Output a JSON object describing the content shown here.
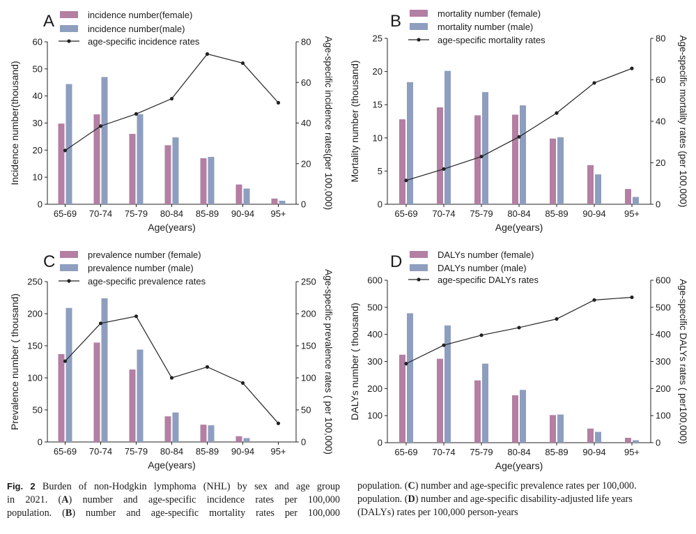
{
  "chart_data": [
    {
      "panel": "A",
      "type": "bar",
      "categories": [
        "65-69",
        "70-74",
        "75-79",
        "80-84",
        "85-89",
        "90-94",
        "95+"
      ],
      "series": [
        {
          "name": "incidence number(female)",
          "kind": "bar",
          "axis": "left",
          "color": "#b37fa2",
          "values": [
            29.8,
            33.2,
            26.0,
            21.8,
            17.0,
            7.3,
            2.1
          ]
        },
        {
          "name": "incidence number(male)",
          "kind": "bar",
          "axis": "left",
          "color": "#8e9ebf",
          "values": [
            44.4,
            47.0,
            33.3,
            24.7,
            17.5,
            5.8,
            1.3
          ]
        },
        {
          "name": "age-specific incidence rates",
          "kind": "line",
          "axis": "right",
          "color": "#222222",
          "values": [
            26.5,
            38.5,
            44.5,
            52,
            74,
            69.5,
            50
          ]
        }
      ],
      "xlabel": "Age(years)",
      "ylabel": "Incidence number(thousand)",
      "ylim": [
        0,
        60
      ],
      "yticks": [
        0,
        10,
        20,
        30,
        40,
        50,
        60
      ],
      "y2label": "Age-specific incidence rates(per 100,000)",
      "y2lim": [
        0,
        80
      ],
      "y2ticks": [
        0,
        20,
        40,
        60,
        80
      ]
    },
    {
      "panel": "B",
      "type": "bar",
      "categories": [
        "65-69",
        "70-74",
        "75-79",
        "80-84",
        "85-89",
        "90-94",
        "95+"
      ],
      "series": [
        {
          "name": "mortality number (female)",
          "kind": "bar",
          "axis": "left",
          "color": "#b37fa2",
          "values": [
            12.8,
            14.6,
            13.4,
            13.5,
            9.9,
            5.9,
            2.3
          ]
        },
        {
          "name": "mortality number (male)",
          "kind": "bar",
          "axis": "left",
          "color": "#8e9ebf",
          "values": [
            18.4,
            20.1,
            16.9,
            14.9,
            10.1,
            4.5,
            1.1
          ]
        },
        {
          "name": "age-specific mortality rates",
          "kind": "line",
          "axis": "right",
          "color": "#222222",
          "values": [
            11.5,
            17,
            23,
            32.5,
            44,
            58.5,
            65.5
          ]
        }
      ],
      "xlabel": "Age(years)",
      "ylabel": "Mortality number (thousand)",
      "ylim": [
        0,
        25
      ],
      "yticks": [
        0,
        5,
        10,
        15,
        20,
        25
      ],
      "y2label": "Age-specific mortality rates (per 100,000)",
      "y2lim": [
        0,
        80
      ],
      "y2ticks": [
        0,
        20,
        40,
        60,
        80
      ]
    },
    {
      "panel": "C",
      "type": "bar",
      "categories": [
        "65-69",
        "70-74",
        "75-79",
        "80-84",
        "85-89",
        "90-94",
        "95+"
      ],
      "series": [
        {
          "name": "prevalence number (female)",
          "kind": "bar",
          "axis": "left",
          "color": "#b37fa2",
          "values": [
            137,
            155,
            113,
            40,
            27,
            9,
            0
          ]
        },
        {
          "name": "prevalence number (male)",
          "kind": "bar",
          "axis": "left",
          "color": "#8e9ebf",
          "values": [
            209,
            224,
            144,
            46,
            26,
            6,
            0
          ]
        },
        {
          "name": "age-specific prevalence rates",
          "kind": "line",
          "axis": "right",
          "color": "#222222",
          "values": [
            126,
            185,
            196,
            100,
            117,
            92,
            29
          ]
        }
      ],
      "xlabel": "Age(years)",
      "ylabel": "Prevalence number ( thousand)",
      "ylim": [
        0,
        250
      ],
      "yticks": [
        0,
        50,
        100,
        150,
        200,
        250
      ],
      "y2label": "Age-specific prevalence rates ( per 100,000)",
      "y2lim": [
        0,
        250
      ],
      "y2ticks": [
        0,
        50,
        100,
        150,
        200,
        250
      ]
    },
    {
      "panel": "D",
      "type": "bar",
      "categories": [
        "65-69",
        "70-74",
        "75-79",
        "80-84",
        "85-89",
        "90-94",
        "95+"
      ],
      "series": [
        {
          "name": "DALYs number (female)",
          "kind": "bar",
          "axis": "left",
          "color": "#b37fa2",
          "values": [
            325,
            310,
            230,
            175,
            102,
            52,
            18
          ]
        },
        {
          "name": "DALYs number (male)",
          "kind": "bar",
          "axis": "left",
          "color": "#8e9ebf",
          "values": [
            478,
            433,
            292,
            195,
            104,
            40,
            9
          ]
        },
        {
          "name": "age-specific DALYs rates",
          "kind": "line",
          "axis": "right",
          "color": "#222222",
          "values": [
            292,
            360,
            397,
            425,
            457,
            527,
            537
          ]
        }
      ],
      "xlabel": "Age(years)",
      "ylabel": "DALYs number ( thousand)",
      "ylim": [
        0,
        600
      ],
      "yticks": [
        0,
        100,
        200,
        300,
        400,
        500,
        600
      ],
      "y2label": "Age-specific DALYs rates ( per100,000)",
      "y2lim": [
        0,
        600
      ],
      "y2ticks": [
        0,
        100,
        200,
        300,
        400,
        500,
        600
      ]
    }
  ],
  "caption": {
    "fig_label": "Fig. 2",
    "line1": "Burden of non-Hodgkin lymphoma (NHL) by sex and age group",
    "line2a": "in 2021. (",
    "letter_a": "A",
    "line2b": ") number and age-specific incidence rates per 100,000",
    "line3a": "population. (",
    "letter_b": "B",
    "line3b": ") number and age-specific mortality rates per 100,000",
    "line4a": "population. (",
    "letter_c": "C",
    "line4b": ") number and age-specific prevalence rates per 100,000.",
    "line5a": "population. (",
    "letter_d": "D",
    "line5b": ") number and age-specific disability-adjusted life years",
    "line6": "(DALYs) rates per 100,000 person-years"
  }
}
